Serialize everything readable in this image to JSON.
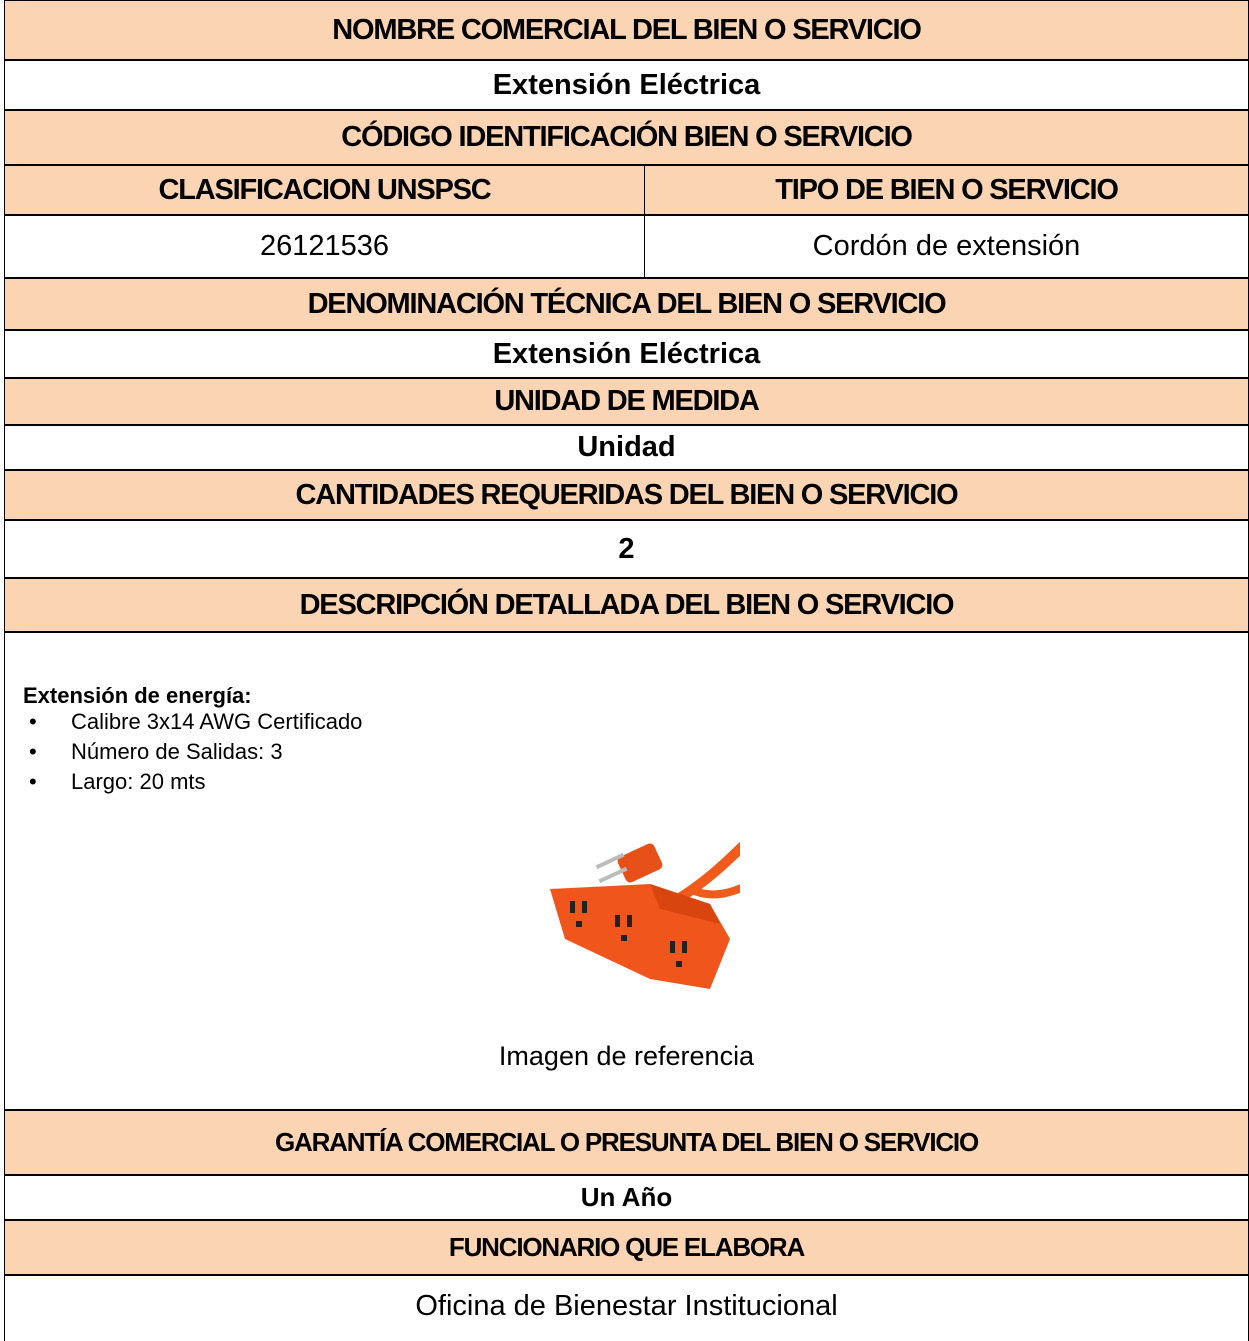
{
  "table": {
    "rows": [
      [
        "NOMBRE COMERCIAL DEL BIEN O SERVICIO"
      ],
      [
        "Extensión Eléctrica"
      ],
      [
        "CÓDIGO IDENTIFICACIÓN BIEN O SERVICIO"
      ],
      [
        "CLASIFICACION UNSPSC",
        "TIPO DE BIEN O SERVICIO"
      ],
      [
        "26121536",
        "Cordón de extensión"
      ],
      [
        "DENOMINACIÓN TÉCNICA DEL BIEN O SERVICIO"
      ],
      [
        "Extensión Eléctrica"
      ],
      [
        "UNIDAD DE MEDIDA"
      ],
      [
        "Unidad"
      ],
      [
        "CANTIDADES REQUERIDAS DEL BIEN O SERVICIO"
      ],
      [
        "2"
      ],
      [
        "DESCRIPCIÓN DETALLADA DEL BIEN O SERVICIO"
      ],
      [
        "GARANTÍA COMERCIAL O PRESUNTA DEL BIEN O SERVICIO"
      ],
      [
        "Un Año"
      ],
      [
        "FUNCIONARIO QUE ELABORA"
      ],
      [
        "Oficina de Bienestar Institucional"
      ]
    ]
  },
  "description": {
    "heading": "Extensión de energía:",
    "items": [
      "Calibre 3x14 AWG Certificado",
      "Número de Salidas: 3",
      "Largo: 20 mts"
    ],
    "caption": "Imagen de referencia"
  }
}
